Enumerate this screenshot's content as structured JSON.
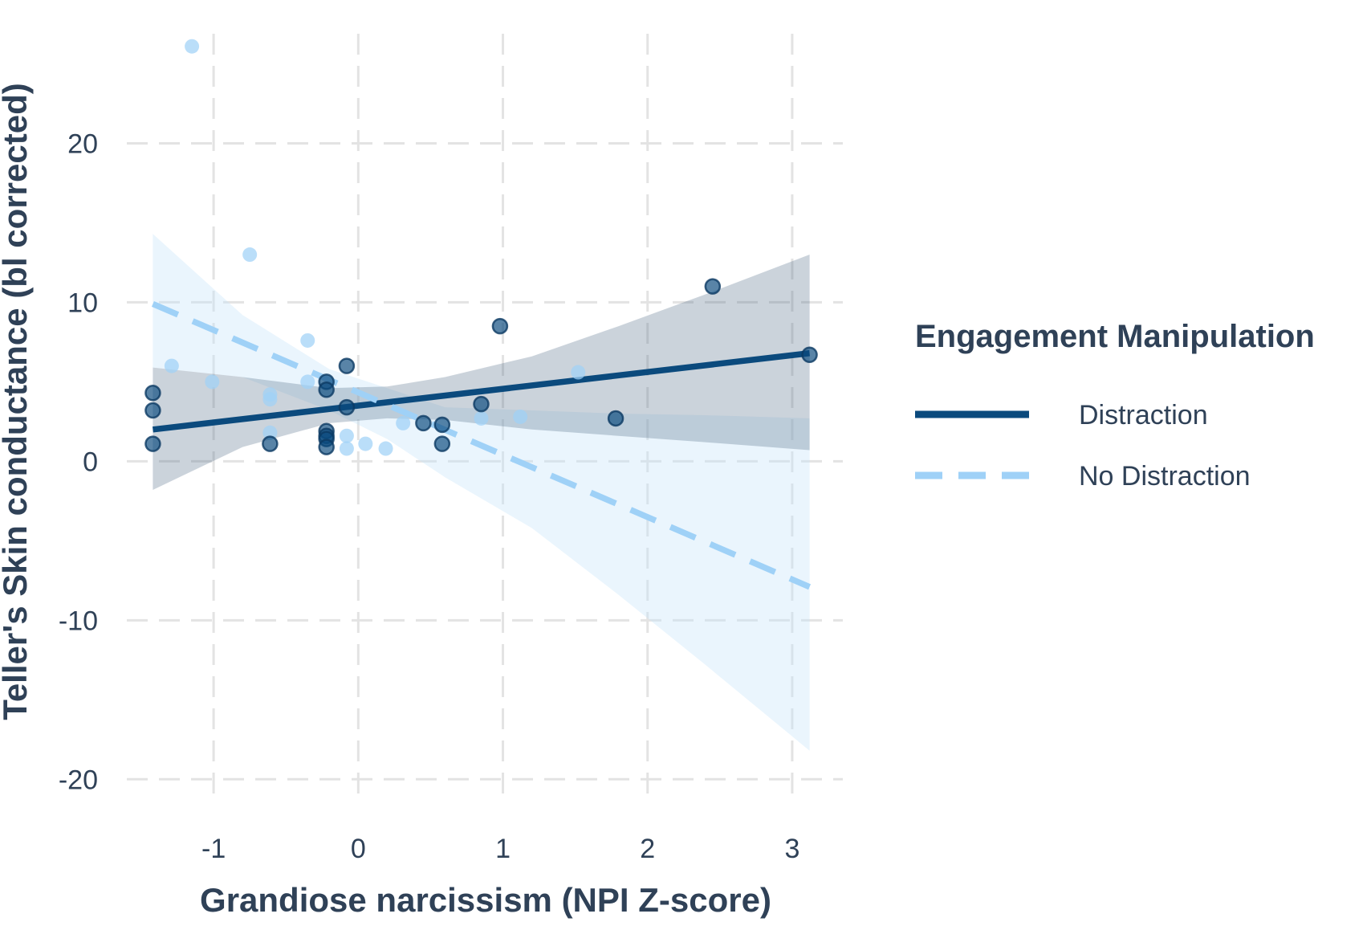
{
  "chart_data": {
    "type": "scatter",
    "xlabel": "Grandiose narcissism (NPI Z-score)",
    "ylabel": "Teller's Skin conductance (bl corrected)",
    "xlim": [
      -1.6,
      3.35
    ],
    "ylim": [
      -21.5,
      27.5
    ],
    "xticks": [
      -1,
      0,
      1,
      2,
      3
    ],
    "yticks": [
      -20,
      -10,
      0,
      10,
      20
    ],
    "xtick_labels": [
      "-1",
      "0",
      "1",
      "2",
      "3"
    ],
    "ytick_labels": [
      "-20",
      "-10",
      "0",
      "10",
      "20"
    ],
    "grid": true,
    "grid_style": "dashed",
    "legend": {
      "title": "Engagement Manipulation",
      "placement": "right"
    },
    "series": [
      {
        "name": "Distraction",
        "color": "#0b4a7d",
        "line_style": "solid",
        "points": [
          [
            -1.42,
            4.3
          ],
          [
            -1.42,
            3.2
          ],
          [
            -1.42,
            1.1
          ],
          [
            -0.61,
            1.1
          ],
          [
            -0.22,
            5.0
          ],
          [
            -0.22,
            4.5
          ],
          [
            -0.22,
            1.9
          ],
          [
            -0.22,
            1.6
          ],
          [
            -0.22,
            1.4
          ],
          [
            -0.22,
            0.9
          ],
          [
            -0.08,
            6.0
          ],
          [
            -0.08,
            3.4
          ],
          [
            0.45,
            2.4
          ],
          [
            0.58,
            2.3
          ],
          [
            0.58,
            1.1
          ],
          [
            0.85,
            3.6
          ],
          [
            0.98,
            8.5
          ],
          [
            1.78,
            2.7
          ],
          [
            2.45,
            11.0
          ],
          [
            3.12,
            6.7
          ]
        ],
        "fit": {
          "x": [
            -1.42,
            3.12
          ],
          "y": [
            2.0,
            6.8
          ]
        },
        "ci": {
          "x": [
            -1.42,
            -0.8,
            -0.2,
            0.2,
            0.6,
            1.2,
            1.8,
            2.4,
            3.12
          ],
          "lower": [
            -1.8,
            0.9,
            2.4,
            2.7,
            2.6,
            2.0,
            1.6,
            1.2,
            0.7
          ],
          "upper": [
            5.9,
            5.3,
            4.6,
            4.7,
            5.3,
            6.6,
            8.5,
            10.5,
            13.0
          ]
        }
      },
      {
        "name": "No Distraction",
        "color": "#9fd1f7",
        "line_style": "dashed",
        "points": [
          [
            -1.29,
            6.0
          ],
          [
            -1.15,
            26.1
          ],
          [
            -1.01,
            5.0
          ],
          [
            -0.75,
            13.0
          ],
          [
            -0.61,
            4.2
          ],
          [
            -0.61,
            3.9
          ],
          [
            -0.61,
            1.8
          ],
          [
            -0.35,
            7.6
          ],
          [
            -0.35,
            5.0
          ],
          [
            -0.08,
            1.6
          ],
          [
            -0.08,
            0.8
          ],
          [
            0.05,
            1.1
          ],
          [
            0.19,
            0.8
          ],
          [
            0.31,
            2.4
          ],
          [
            0.85,
            2.7
          ],
          [
            1.12,
            2.8
          ],
          [
            1.52,
            5.6
          ]
        ],
        "fit": {
          "x": [
            -1.42,
            3.12
          ],
          "y": [
            9.9,
            -7.9
          ]
        },
        "ci": {
          "x": [
            -1.42,
            -0.8,
            -0.2,
            0.2,
            0.6,
            1.2,
            1.8,
            2.4,
            3.12
          ],
          "lower": [
            5.9,
            5.3,
            3.2,
            1.4,
            -1.0,
            -4.2,
            -8.4,
            -12.8,
            -18.2
          ],
          "upper": [
            14.3,
            9.2,
            5.8,
            4.6,
            3.4,
            3.2,
            3.0,
            2.9,
            2.7
          ]
        }
      }
    ]
  }
}
